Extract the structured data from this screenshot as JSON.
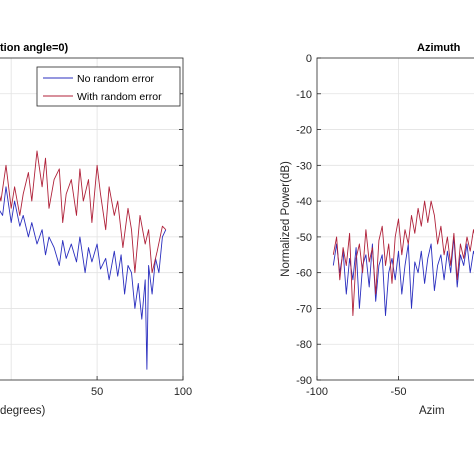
{
  "colors": {
    "no_error": "#2b2fbf",
    "with_error": "#b0223a",
    "grid": "#e2e2e2",
    "axis": "#262626"
  },
  "chart_data": [
    {
      "type": "line",
      "title": "tion angle=0)",
      "xlabel": "degrees)",
      "ylabel": "",
      "xlim": [
        -10,
        100
      ],
      "ylim": [
        -90,
        0
      ],
      "xticks": [
        50,
        100
      ],
      "xtick_labels": [
        "50",
        "100"
      ],
      "yticks": [],
      "grid": true,
      "legend": {
        "placement": "top-right",
        "entries": [
          "No random error",
          "With random error"
        ]
      },
      "series": [
        {
          "name": "No random error",
          "color": "#2b2fbf",
          "x": [
            -10,
            -5,
            -3,
            0,
            2,
            5,
            7,
            10,
            12,
            15,
            18,
            20,
            22,
            25,
            28,
            30,
            32,
            35,
            38,
            40,
            43,
            45,
            47,
            50,
            52,
            55,
            57,
            60,
            62,
            64,
            66,
            68,
            70,
            72,
            74,
            75,
            76,
            78,
            79,
            80,
            82,
            84,
            86,
            88,
            90
          ],
          "y": [
            -40,
            -44,
            -36,
            -46,
            -40,
            -47,
            -44,
            -50,
            -46,
            -52,
            -48,
            -55,
            -50,
            -53,
            -58,
            -51,
            -56,
            -52,
            -57,
            -50,
            -60,
            -53,
            -57,
            -52,
            -59,
            -56,
            -62,
            -54,
            -61,
            -55,
            -66,
            -58,
            -60,
            -70,
            -63,
            -68,
            -73,
            -62,
            -87,
            -58,
            -66,
            -56,
            -60,
            -50,
            -48
          ]
        },
        {
          "name": "With random error",
          "color": "#b0223a",
          "x": [
            -10,
            -6,
            -3,
            0,
            2,
            5,
            7,
            10,
            12,
            15,
            18,
            20,
            22,
            25,
            28,
            30,
            32,
            35,
            38,
            40,
            42,
            45,
            47,
            50,
            52,
            55,
            57,
            60,
            62,
            65,
            68,
            70,
            72,
            75,
            78,
            80,
            82,
            85,
            88,
            90
          ],
          "y": [
            -32,
            -40,
            -30,
            -42,
            -36,
            -44,
            -38,
            -32,
            -40,
            -26,
            -36,
            -28,
            -42,
            -34,
            -31,
            -46,
            -38,
            -34,
            -44,
            -31,
            -40,
            -34,
            -46,
            -30,
            -38,
            -48,
            -36,
            -44,
            -40,
            -53,
            -42,
            -48,
            -60,
            -44,
            -52,
            -48,
            -60,
            -54,
            -47,
            -48
          ]
        }
      ]
    },
    {
      "type": "line",
      "title": "Azimuth",
      "xlabel": "Azim",
      "ylabel": "Normalized Power(dB)",
      "xlim": [
        -100,
        0
      ],
      "ylim": [
        -90,
        0
      ],
      "xticks": [
        -100,
        -50
      ],
      "xtick_labels": [
        "-100",
        "-50"
      ],
      "yticks": [
        0,
        -10,
        -20,
        -30,
        -40,
        -50,
        -60,
        -70,
        -80,
        -90
      ],
      "ytick_labels": [
        "0",
        "-10",
        "-20",
        "-30",
        "-40",
        "-50",
        "-60",
        "-70",
        "-80",
        "-90"
      ],
      "grid": true,
      "series": [
        {
          "name": "No random error",
          "color": "#2b2fbf",
          "x": [
            -90,
            -88,
            -86,
            -84,
            -82,
            -80,
            -78,
            -76,
            -74,
            -72,
            -70,
            -68,
            -66,
            -64,
            -62,
            -60,
            -58,
            -56,
            -54,
            -52,
            -50,
            -48,
            -46,
            -44,
            -42,
            -40,
            -38,
            -36,
            -34,
            -32,
            -30,
            -28,
            -26,
            -24,
            -22,
            -20,
            -18,
            -16,
            -14,
            -12,
            -10,
            -8,
            -6,
            -4,
            -2,
            0
          ],
          "y": [
            -58,
            -52,
            -60,
            -54,
            -66,
            -56,
            -62,
            -53,
            -70,
            -58,
            -55,
            -64,
            -52,
            -68,
            -58,
            -55,
            -72,
            -60,
            -56,
            -62,
            -54,
            -66,
            -58,
            -52,
            -70,
            -57,
            -60,
            -54,
            -63,
            -56,
            -52,
            -65,
            -58,
            -55,
            -62,
            -54,
            -60,
            -50,
            -64,
            -55,
            -58,
            -52,
            -60,
            -54,
            -57,
            -55
          ]
        },
        {
          "name": "With random error",
          "color": "#b0223a",
          "x": [
            -90,
            -88,
            -86,
            -84,
            -82,
            -80,
            -78,
            -76,
            -74,
            -72,
            -70,
            -68,
            -66,
            -64,
            -62,
            -60,
            -58,
            -56,
            -54,
            -52,
            -50,
            -48,
            -46,
            -44,
            -42,
            -40,
            -38,
            -36,
            -34,
            -32,
            -30,
            -28,
            -26,
            -24,
            -22,
            -20,
            -18,
            -16,
            -14,
            -12,
            -10,
            -8,
            -6,
            -4,
            -2,
            0
          ],
          "y": [
            -55,
            -50,
            -62,
            -53,
            -58,
            -49,
            -72,
            -56,
            -52,
            -60,
            -48,
            -57,
            -53,
            -66,
            -51,
            -47,
            -58,
            -52,
            -63,
            -50,
            -45,
            -55,
            -48,
            -52,
            -44,
            -49,
            -42,
            -47,
            -40,
            -46,
            -40,
            -44,
            -52,
            -47,
            -55,
            -50,
            -58,
            -49,
            -62,
            -52,
            -56,
            -50,
            -54,
            -48,
            -52,
            -50
          ]
        }
      ]
    }
  ]
}
